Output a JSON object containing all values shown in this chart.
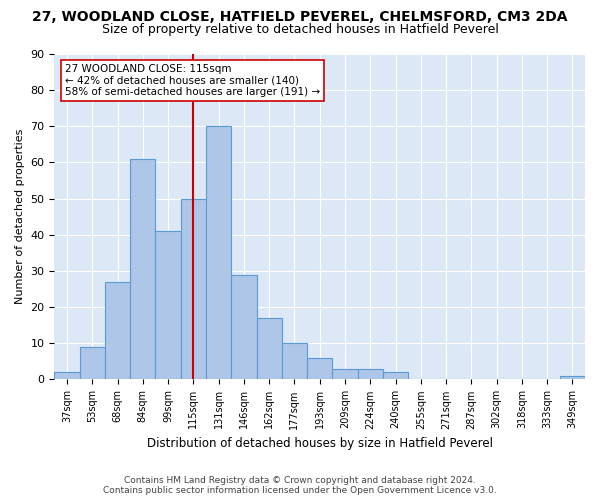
{
  "title": "27, WOODLAND CLOSE, HATFIELD PEVEREL, CHELMSFORD, CM3 2DA",
  "subtitle": "Size of property relative to detached houses in Hatfield Peverel",
  "xlabel": "Distribution of detached houses by size in Hatfield Peverel",
  "ylabel": "Number of detached properties",
  "categories": [
    "37sqm",
    "53sqm",
    "68sqm",
    "84sqm",
    "99sqm",
    "115sqm",
    "131sqm",
    "146sqm",
    "162sqm",
    "177sqm",
    "193sqm",
    "209sqm",
    "224sqm",
    "240sqm",
    "255sqm",
    "271sqm",
    "287sqm",
    "302sqm",
    "318sqm",
    "333sqm",
    "349sqm"
  ],
  "values": [
    2,
    9,
    27,
    61,
    41,
    50,
    70,
    29,
    17,
    10,
    6,
    3,
    3,
    2,
    0,
    0,
    0,
    0,
    0,
    0,
    1
  ],
  "bar_color": "#aec6e8",
  "bar_edge_color": "#5b9bd5",
  "vline_x_index": 5,
  "vline_color": "#cc0000",
  "annotation_text": "27 WOODLAND CLOSE: 115sqm\n← 42% of detached houses are smaller (140)\n58% of semi-detached houses are larger (191) →",
  "annotation_box_color": "#ffffff",
  "annotation_box_edge_color": "#cc0000",
  "ylim": [
    0,
    90
  ],
  "yticks": [
    0,
    10,
    20,
    30,
    40,
    50,
    60,
    70,
    80,
    90
  ],
  "background_color": "#dce8f5",
  "footer_line1": "Contains HM Land Registry data © Crown copyright and database right 2024.",
  "footer_line2": "Contains public sector information licensed under the Open Government Licence v3.0.",
  "title_fontsize": 10,
  "subtitle_fontsize": 9
}
